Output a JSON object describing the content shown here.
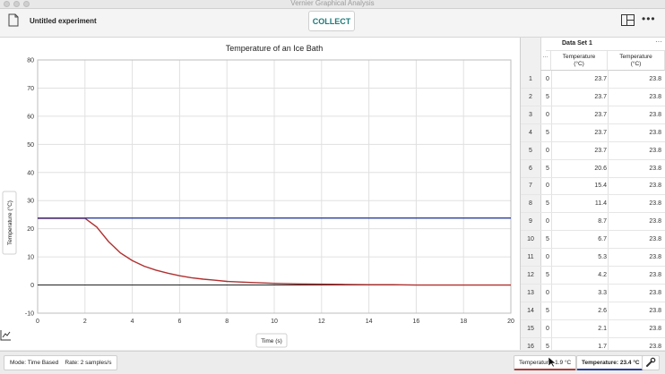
{
  "window": {
    "title": "Vernier Graphical Analysis"
  },
  "toolbar": {
    "experiment_name": "Untitled experiment",
    "collect_label": "COLLECT"
  },
  "chart_data": {
    "type": "line",
    "title": "Temperature of an Ice Bath",
    "xlabel": "Time (s)",
    "ylabel": "Temperature (°C)",
    "xlim": [
      0,
      20
    ],
    "ylim": [
      -10,
      80
    ],
    "xticks": [
      0,
      2,
      4,
      6,
      8,
      10,
      12,
      14,
      16,
      18,
      20
    ],
    "yticks": [
      -10,
      0,
      10,
      20,
      30,
      40,
      50,
      60,
      70,
      80
    ],
    "grid": true,
    "series": [
      {
        "color": "#b03030",
        "x": [
          0,
          0.5,
          1,
          1.5,
          2,
          2.5,
          3,
          3.5,
          4,
          4.5,
          5,
          5.5,
          6,
          6.5,
          7,
          7.5,
          8,
          9,
          10,
          11,
          12,
          13,
          14,
          15,
          16,
          17,
          18,
          19,
          20
        ],
        "y": [
          23.7,
          23.7,
          23.7,
          23.7,
          23.7,
          20.6,
          15.4,
          11.4,
          8.7,
          6.7,
          5.3,
          4.2,
          3.3,
          2.6,
          2.1,
          1.7,
          1.3,
          0.9,
          0.6,
          0.4,
          0.3,
          0.2,
          0.1,
          0.1,
          0.0,
          0.0,
          0.0,
          0.0,
          0.0
        ]
      },
      {
        "color": "#2b3f9c",
        "x": [
          0,
          20
        ],
        "y": [
          23.8,
          23.8
        ]
      }
    ]
  },
  "table": {
    "dataset_title": "Data Set 1",
    "columns": [
      {
        "label": "Temperature",
        "unit": "(°C)"
      },
      {
        "label": "Temperature",
        "unit": "(°C)"
      }
    ],
    "rows": [
      {
        "n": "1",
        "t": "0",
        "a": "23.7",
        "b": "23.8"
      },
      {
        "n": "2",
        "t": "5",
        "a": "23.7",
        "b": "23.8"
      },
      {
        "n": "3",
        "t": "0",
        "a": "23.7",
        "b": "23.8"
      },
      {
        "n": "4",
        "t": "5",
        "a": "23.7",
        "b": "23.8"
      },
      {
        "n": "5",
        "t": "0",
        "a": "23.7",
        "b": "23.8"
      },
      {
        "n": "6",
        "t": "5",
        "a": "20.6",
        "b": "23.8"
      },
      {
        "n": "7",
        "t": "0",
        "a": "15.4",
        "b": "23.8"
      },
      {
        "n": "8",
        "t": "5",
        "a": "11.4",
        "b": "23.8"
      },
      {
        "n": "9",
        "t": "0",
        "a": "8.7",
        "b": "23.8"
      },
      {
        "n": "10",
        "t": "5",
        "a": "6.7",
        "b": "23.8"
      },
      {
        "n": "11",
        "t": "0",
        "a": "5.3",
        "b": "23.8"
      },
      {
        "n": "12",
        "t": "5",
        "a": "4.2",
        "b": "23.8"
      },
      {
        "n": "13",
        "t": "0",
        "a": "3.3",
        "b": "23.8"
      },
      {
        "n": "14",
        "t": "5",
        "a": "2.6",
        "b": "23.8"
      },
      {
        "n": "15",
        "t": "0",
        "a": "2.1",
        "b": "23.8"
      },
      {
        "n": "16",
        "t": "5",
        "a": "1.7",
        "b": "23.8"
      }
    ]
  },
  "status": {
    "mode": "Mode: Time Based    Rate: 2 samples/s",
    "meter1": "Temperature: 1.9 °C",
    "meter2": "Temperature: 23.4 °C"
  }
}
